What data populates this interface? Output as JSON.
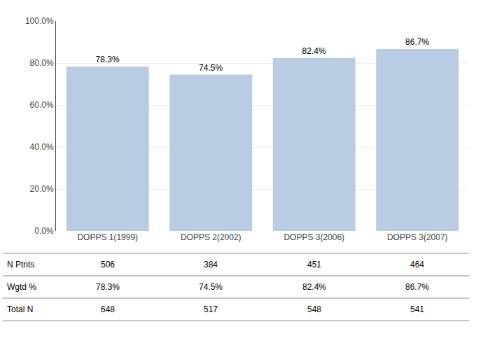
{
  "chart_data": {
    "type": "bar",
    "categories": [
      "DOPPS 1(1999)",
      "DOPPS 2(2002)",
      "DOPPS 3(2006)",
      "DOPPS 3(2007)"
    ],
    "values": [
      78.3,
      74.5,
      82.4,
      86.7
    ],
    "value_labels": [
      "78.3%",
      "74.5%",
      "82.4%",
      "86.7%"
    ],
    "data_labels": true,
    "color": "#b8cce4",
    "ylim": [
      0,
      100
    ],
    "yticks": [
      {
        "value": 0,
        "label": "0.0%"
      },
      {
        "value": 20,
        "label": "20.0%"
      },
      {
        "value": 40,
        "label": "40.0%"
      },
      {
        "value": 60,
        "label": "60.0%"
      },
      {
        "value": 80,
        "label": "80.0%"
      },
      {
        "value": 100,
        "label": "100.0%"
      }
    ],
    "grid": true,
    "table": [
      {
        "label": "N Ptnts",
        "cells": [
          "506",
          "384",
          "451",
          "464"
        ]
      },
      {
        "label": "Wgtd %",
        "cells": [
          "78.3%",
          "74.5%",
          "82.4%",
          "86.7%"
        ]
      },
      {
        "label": "Total N",
        "cells": [
          "648",
          "517",
          "548",
          "541"
        ]
      }
    ]
  }
}
